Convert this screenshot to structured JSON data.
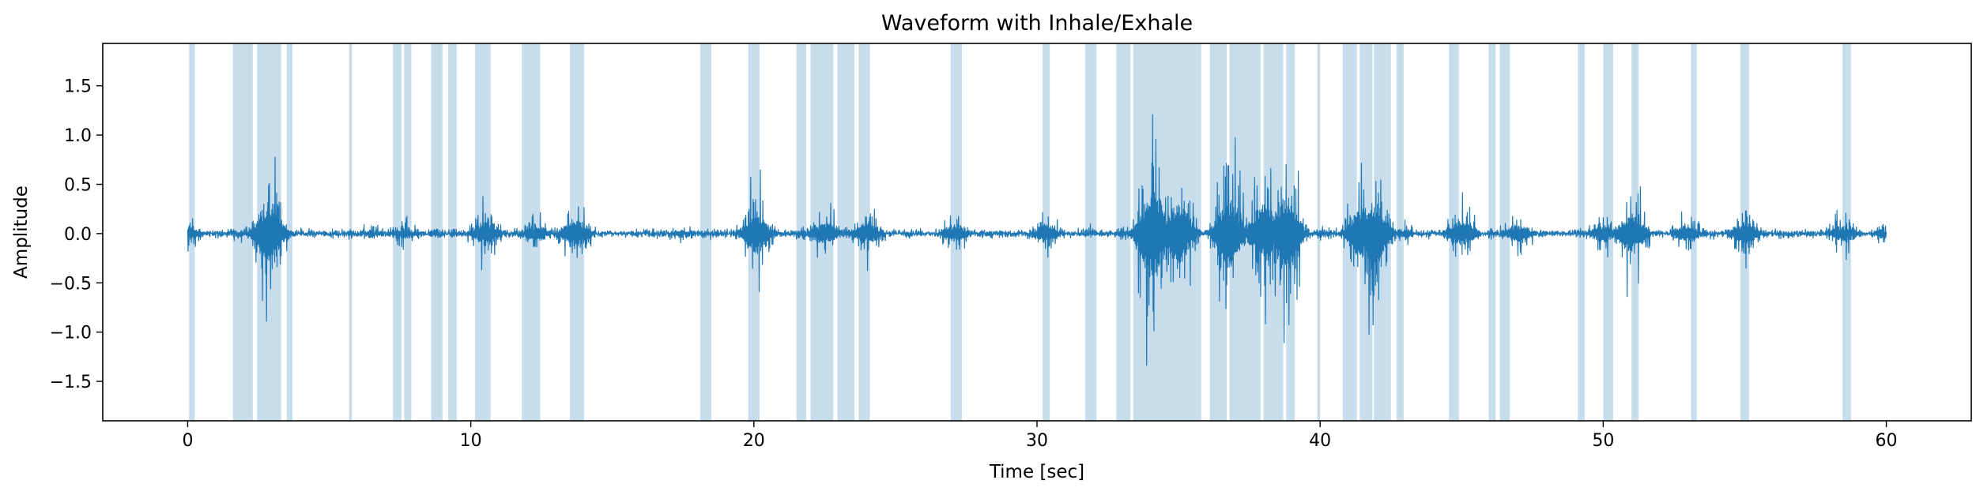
{
  "chart_data": {
    "type": "line",
    "title": "Waveform with Inhale/Exhale",
    "xlabel": "Time [sec]",
    "ylabel": "Amplitude",
    "xlim": [
      -3,
      63
    ],
    "ylim": [
      -1.9,
      1.93
    ],
    "x_ticks": [
      0,
      10,
      20,
      30,
      40,
      50,
      60
    ],
    "y_ticks": [
      -1.5,
      -1.0,
      -0.5,
      0.0,
      0.5,
      1.0,
      1.5
    ],
    "grid": false,
    "line_color": "#1f77b4",
    "shade_color": "#1f77b4",
    "shade_opacity": 0.25,
    "duration_sec": 60,
    "baseline_amplitude": 0.05,
    "series": [
      {
        "values_envelope": [
          [
            0.0,
            0.22
          ],
          [
            2.9,
            0.86
          ],
          [
            2.9,
            -1.0
          ],
          [
            6.5,
            0.12
          ],
          [
            7.6,
            0.2
          ],
          [
            10.5,
            0.42
          ],
          [
            10.5,
            -0.42
          ],
          [
            12.3,
            0.25
          ],
          [
            13.7,
            0.5
          ],
          [
            13.7,
            -0.45
          ],
          [
            17.5,
            0.12
          ],
          [
            20.1,
            0.7
          ],
          [
            20.1,
            -0.4
          ],
          [
            22.5,
            0.38
          ],
          [
            22.5,
            -0.35
          ],
          [
            24.0,
            0.4
          ],
          [
            27.1,
            0.3
          ],
          [
            30.3,
            0.3
          ],
          [
            33.0,
            0.06
          ],
          [
            34.0,
            1.2
          ],
          [
            34.1,
            -1.7
          ],
          [
            35.0,
            0.9
          ],
          [
            35.0,
            -1.1
          ],
          [
            36.8,
            1.15
          ],
          [
            36.8,
            -1.25
          ],
          [
            38.0,
            0.9
          ],
          [
            38.0,
            -1.1
          ],
          [
            38.8,
            1.35
          ],
          [
            38.8,
            -1.2
          ],
          [
            40.2,
            0.12
          ],
          [
            41.5,
            1.0
          ],
          [
            41.9,
            -1.2
          ],
          [
            43.0,
            0.15
          ],
          [
            45.0,
            0.45
          ],
          [
            47.0,
            0.3
          ],
          [
            50.0,
            0.3
          ],
          [
            51.0,
            -0.7
          ],
          [
            53.0,
            0.3
          ],
          [
            55.0,
            0.4
          ],
          [
            58.5,
            0.3
          ],
          [
            60.0,
            0.15
          ]
        ]
      }
    ],
    "shaded_intervals": [
      [
        0.05,
        0.25
      ],
      [
        1.6,
        2.3
      ],
      [
        2.45,
        3.3
      ],
      [
        3.5,
        3.7
      ],
      [
        5.7,
        5.8
      ],
      [
        7.25,
        7.55
      ],
      [
        7.65,
        7.9
      ],
      [
        8.6,
        9.0
      ],
      [
        9.2,
        9.5
      ],
      [
        10.15,
        10.7
      ],
      [
        11.8,
        12.45
      ],
      [
        13.5,
        14.0
      ],
      [
        18.1,
        18.5
      ],
      [
        19.8,
        20.2
      ],
      [
        21.5,
        21.85
      ],
      [
        22.0,
        22.8
      ],
      [
        22.95,
        23.55
      ],
      [
        23.7,
        24.1
      ],
      [
        26.95,
        27.35
      ],
      [
        30.2,
        30.45
      ],
      [
        31.7,
        32.1
      ],
      [
        32.8,
        33.3
      ],
      [
        33.4,
        35.8
      ],
      [
        36.1,
        36.7
      ],
      [
        36.8,
        37.9
      ],
      [
        38.0,
        38.7
      ],
      [
        38.8,
        39.1
      ],
      [
        39.9,
        40.0
      ],
      [
        40.8,
        41.3
      ],
      [
        41.4,
        41.85
      ],
      [
        41.9,
        42.5
      ],
      [
        42.7,
        42.95
      ],
      [
        44.55,
        44.9
      ],
      [
        45.95,
        46.2
      ],
      [
        46.35,
        46.7
      ],
      [
        49.1,
        49.35
      ],
      [
        50.0,
        50.35
      ],
      [
        51.0,
        51.25
      ],
      [
        53.1,
        53.3
      ],
      [
        54.85,
        55.15
      ],
      [
        58.45,
        58.75
      ]
    ]
  }
}
